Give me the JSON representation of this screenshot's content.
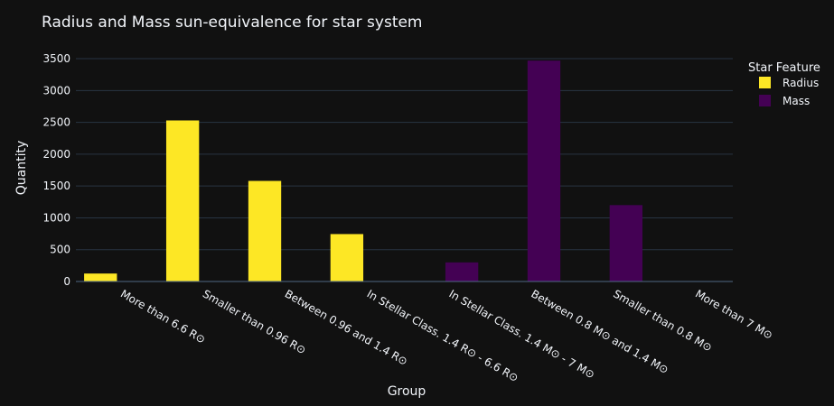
{
  "chart_data": {
    "type": "bar",
    "title": "Radius and Mass sun-equivalence for star system",
    "xlabel": "Group",
    "ylabel": "Quantity",
    "ylim": [
      0,
      3600
    ],
    "yticks": [
      0,
      500,
      1000,
      1500,
      2000,
      2500,
      3000,
      3500
    ],
    "grid": true,
    "legend": {
      "title": "Star Feature",
      "placement": "top-right"
    },
    "categories": [
      "More than 6.6 R⊙",
      "Smaller than 0.96 R⊙",
      "Between 0.96 and 1.4 R⊙",
      "In Stellar Class. 1.4 R⊙ - 6.6 R⊙",
      "In Stellar Class. 1.4 M⊙ - 7 M⊙",
      "Between 0.8 M⊙ and 1.4 M⊙",
      "Smaller than 0.8 M⊙",
      "More than 7 M⊙"
    ],
    "series": [
      {
        "name": "Radius",
        "color": "#fde725",
        "values": [
          125,
          2530,
          1580,
          745,
          null,
          null,
          null,
          null
        ]
      },
      {
        "name": "Mass",
        "color": "#440154",
        "values": [
          null,
          null,
          null,
          null,
          300,
          3470,
          1200,
          5
        ]
      }
    ]
  }
}
